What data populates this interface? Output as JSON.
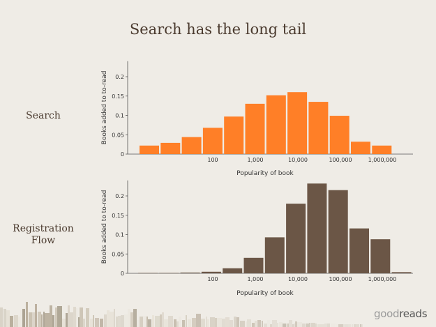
{
  "title": "Search has the long tail",
  "rows": [
    {
      "label": "Search"
    },
    {
      "label": "Registration Flow"
    }
  ],
  "logo": {
    "light": "good",
    "dark": "reads"
  },
  "colors": {
    "search": "#ff7f27",
    "registration": "#6b5646",
    "text": "#4a3a2e"
  },
  "chart_data": [
    {
      "type": "bar",
      "title": "",
      "xlabel": "Popularity of book",
      "ylabel": "Books added to to-read",
      "x_scale": "log",
      "x_tick_labels": [
        "100",
        "1,000",
        "10,000",
        "100,000",
        "1,000,000"
      ],
      "y_ticks": [
        "0",
        "0.05",
        "0.1",
        "0.15",
        "0.2"
      ],
      "ylim": [
        0,
        0.24
      ],
      "values": [
        0.022,
        0.029,
        0.044,
        0.068,
        0.097,
        0.13,
        0.152,
        0.16,
        0.135,
        0.099,
        0.032,
        0.022
      ],
      "color": "#ff7f27"
    },
    {
      "type": "bar",
      "title": "",
      "xlabel": "Popularity of book",
      "ylabel": "Books added to to-read",
      "x_scale": "log",
      "x_tick_labels": [
        "100",
        "1,000",
        "10,000",
        "100,000",
        "1,000,000"
      ],
      "y_ticks": [
        "0",
        "0.05",
        "0.1",
        "0.15",
        "0.2"
      ],
      "ylim": [
        0,
        0.24
      ],
      "values": [
        0.001,
        0.001,
        0.002,
        0.004,
        0.013,
        0.04,
        0.093,
        0.18,
        0.232,
        0.215,
        0.116,
        0.088,
        0.003
      ],
      "color": "#6b5646"
    }
  ]
}
